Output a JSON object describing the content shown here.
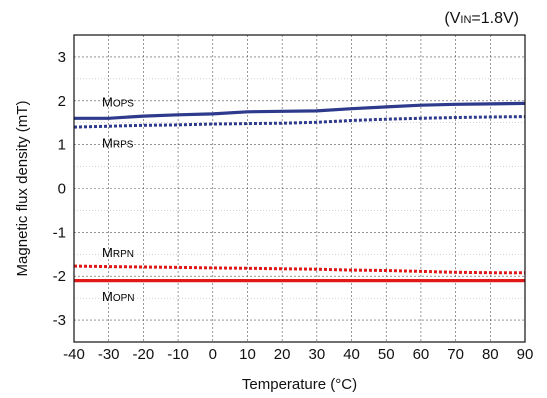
{
  "chart_data": {
    "type": "line",
    "condition": {
      "open": "(V",
      "sub": "IN",
      "close": "=1.8V)"
    },
    "xlabel": "Temperature (°C)",
    "ylabel": "Magnetic flux density (mT)",
    "xlim": [
      -40,
      90
    ],
    "ylim": [
      -3.5,
      3.5
    ],
    "x_ticks": [
      -40,
      -30,
      -20,
      -10,
      0,
      10,
      20,
      30,
      40,
      50,
      60,
      70,
      80,
      90
    ],
    "y_ticks": [
      3,
      2,
      1,
      0,
      -1,
      -2,
      -3
    ],
    "grid": true,
    "series": [
      {
        "name": "MOPS",
        "display": {
          "first": "M",
          "rest": "OPS"
        },
        "color": "#2e3a8c",
        "style": "solid",
        "x": [
          -40,
          -30,
          -20,
          -10,
          0,
          10,
          20,
          30,
          40,
          50,
          60,
          70,
          80,
          90
        ],
        "y": [
          1.6,
          1.6,
          1.65,
          1.68,
          1.7,
          1.75,
          1.76,
          1.77,
          1.82,
          1.86,
          1.9,
          1.92,
          1.93,
          1.94
        ]
      },
      {
        "name": "MRPS",
        "display": {
          "first": "M",
          "rest": "RPS"
        },
        "color": "#2e3a8c",
        "style": "dotted",
        "x": [
          -40,
          -30,
          -20,
          -10,
          0,
          10,
          20,
          30,
          40,
          50,
          60,
          70,
          80,
          90
        ],
        "y": [
          1.4,
          1.42,
          1.44,
          1.45,
          1.47,
          1.48,
          1.49,
          1.51,
          1.55,
          1.58,
          1.6,
          1.62,
          1.63,
          1.64
        ]
      },
      {
        "name": "MRPN",
        "display": {
          "first": "M",
          "rest": "RPN"
        },
        "color": "#e01818",
        "style": "dotted",
        "x": [
          -40,
          -30,
          -20,
          -10,
          0,
          10,
          20,
          30,
          40,
          50,
          60,
          70,
          80,
          90
        ],
        "y": [
          -1.77,
          -1.78,
          -1.79,
          -1.8,
          -1.81,
          -1.82,
          -1.83,
          -1.84,
          -1.86,
          -1.87,
          -1.89,
          -1.91,
          -1.92,
          -1.92
        ]
      },
      {
        "name": "MOPN",
        "display": {
          "first": "M",
          "rest": "OPN"
        },
        "color": "#e01818",
        "style": "solid",
        "x": [
          -40,
          -30,
          -20,
          -10,
          0,
          10,
          20,
          30,
          40,
          50,
          60,
          70,
          80,
          90
        ],
        "y": [
          -2.1,
          -2.1,
          -2.1,
          -2.1,
          -2.1,
          -2.1,
          -2.1,
          -2.1,
          -2.1,
          -2.1,
          -2.1,
          -2.1,
          -2.1,
          -2.1
        ]
      }
    ]
  }
}
